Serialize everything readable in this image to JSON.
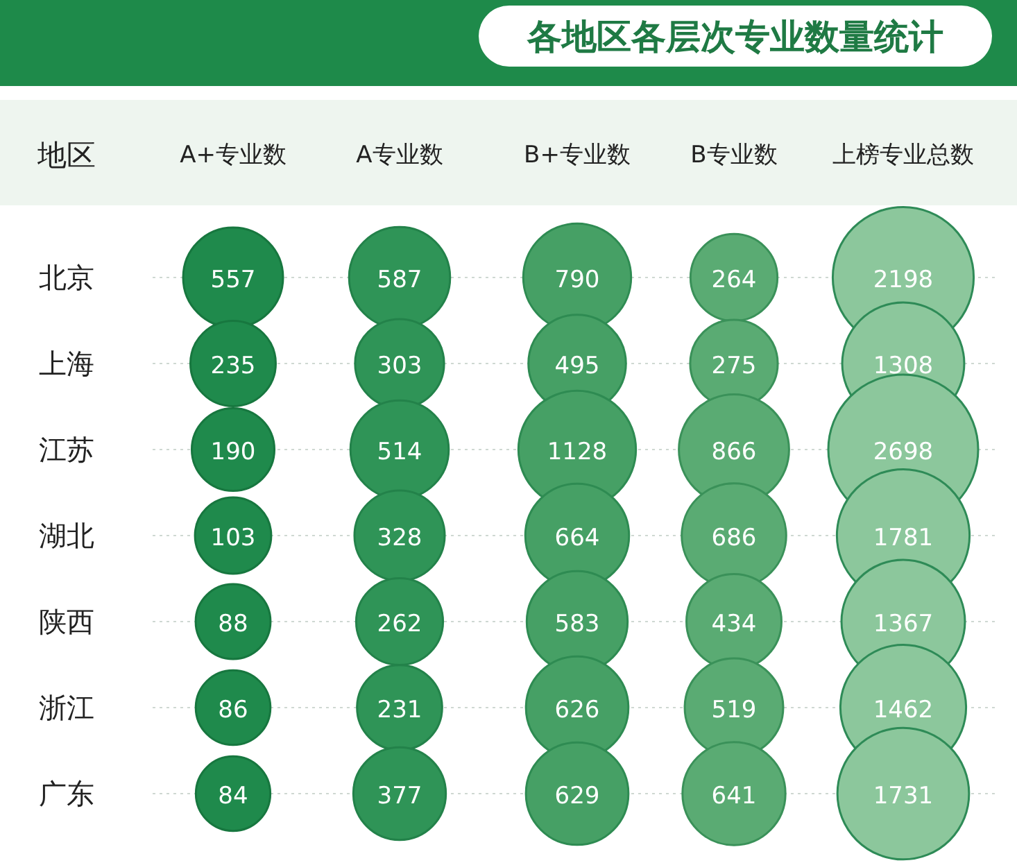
{
  "chart_data": {
    "type": "heatmap",
    "title": "各地区各层次专业数量统计",
    "ylabel": "地区",
    "categories": [
      "A+专业数",
      "A专业数",
      "B+专业数",
      "B专业数",
      "上榜专业总数"
    ],
    "y_categories": [
      "北京",
      "上海",
      "江苏",
      "湖北",
      "陕西",
      "浙江",
      "广东"
    ],
    "cells": [
      [
        557,
        587,
        790,
        264,
        2198
      ],
      [
        235,
        303,
        495,
        275,
        1308
      ],
      [
        190,
        514,
        1128,
        866,
        2698
      ],
      [
        103,
        328,
        664,
        686,
        1781
      ],
      [
        88,
        262,
        583,
        434,
        1367
      ],
      [
        86,
        231,
        626,
        519,
        1462
      ],
      [
        84,
        377,
        629,
        641,
        1731
      ]
    ],
    "data_labels": true
  }
}
